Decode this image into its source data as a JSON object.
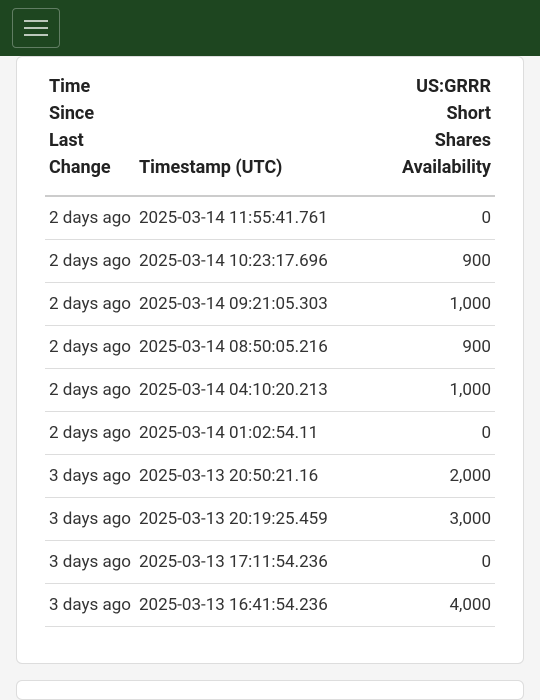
{
  "navbar": {
    "menu_icon": "hamburger"
  },
  "table": {
    "columns": {
      "time_since": "Time Since Last Change",
      "timestamp": "Timestamp (UTC)",
      "availability": "US:GRRR Short Shares Availability"
    },
    "rows": [
      {
        "time_since": "2 days ago",
        "timestamp": "2025-03-14 11:55:41.761",
        "availability": "0"
      },
      {
        "time_since": "2 days ago",
        "timestamp": "2025-03-14 10:23:17.696",
        "availability": "900"
      },
      {
        "time_since": "2 days ago",
        "timestamp": "2025-03-14 09:21:05.303",
        "availability": "1,000"
      },
      {
        "time_since": "2 days ago",
        "timestamp": "2025-03-14 08:50:05.216",
        "availability": "900"
      },
      {
        "time_since": "2 days ago",
        "timestamp": "2025-03-14 04:10:20.213",
        "availability": "1,000"
      },
      {
        "time_since": "2 days ago",
        "timestamp": "2025-03-14 01:02:54.11",
        "availability": "0"
      },
      {
        "time_since": "3 days ago",
        "timestamp": "2025-03-13 20:50:21.16",
        "availability": "2,000"
      },
      {
        "time_since": "3 days ago",
        "timestamp": "2025-03-13 20:19:25.459",
        "availability": "3,000"
      },
      {
        "time_since": "3 days ago",
        "timestamp": "2025-03-13 17:11:54.236",
        "availability": "0"
      },
      {
        "time_since": "3 days ago",
        "timestamp": "2025-03-13 16:41:54.236",
        "availability": "4,000"
      }
    ]
  }
}
